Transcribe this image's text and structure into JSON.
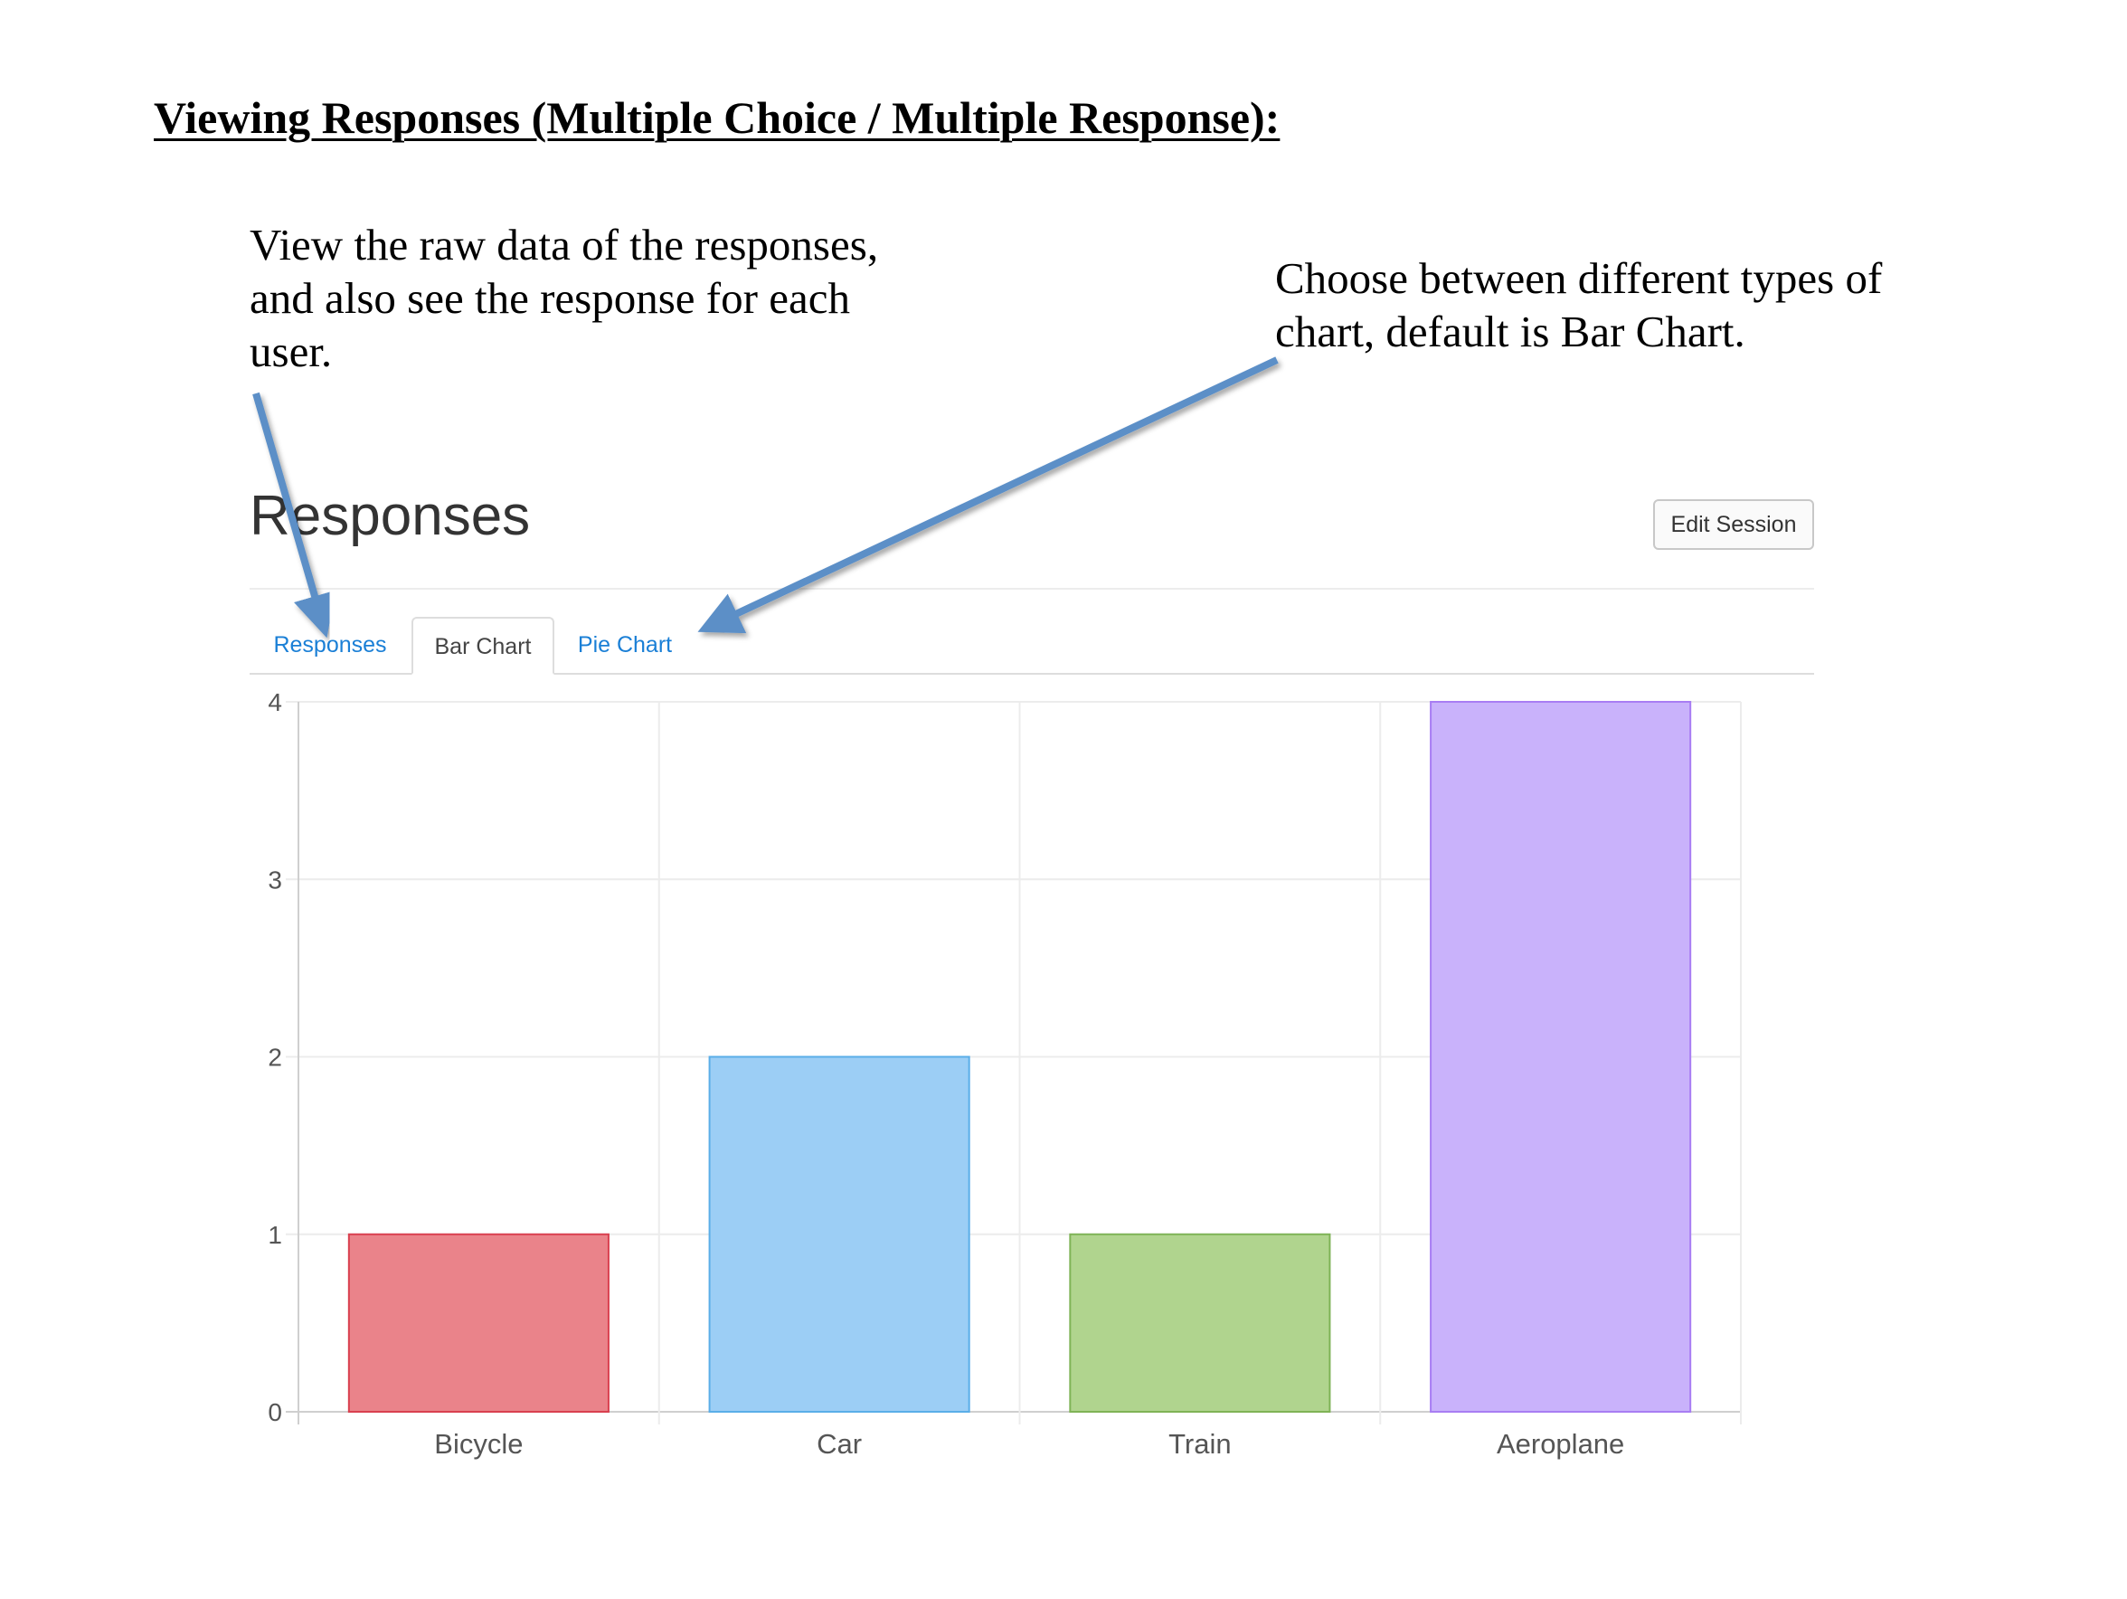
{
  "document": {
    "heading": "Viewing Responses (Multiple Choice / Multiple Response):",
    "note_left": {
      "lines": [
        "View the raw data of the responses,",
        "and also see the response for each",
        "user."
      ]
    },
    "note_right": {
      "lines": [
        "Choose between different types of",
        "chart, default is Bar Chart."
      ]
    },
    "arrow_color": "#5b8fc7"
  },
  "app": {
    "title": "Responses",
    "edit_button_label": "Edit Session",
    "tabs": [
      {
        "label": "Responses",
        "active": false
      },
      {
        "label": "Bar Chart",
        "active": true
      },
      {
        "label": "Pie Chart",
        "active": false
      }
    ]
  },
  "chart_data": {
    "type": "bar",
    "categories": [
      "Bicycle",
      "Car",
      "Train",
      "Aeroplane"
    ],
    "values": [
      1,
      2,
      1,
      4
    ],
    "ylim": [
      0,
      4
    ],
    "yticks": [
      "0",
      "1",
      "2",
      "3",
      "4"
    ],
    "grid": true,
    "colors": [
      {
        "fill": "#ea838a",
        "stroke": "#d9404f"
      },
      {
        "fill": "#9ccef5",
        "stroke": "#5aaee8"
      },
      {
        "fill": "#b0d48e",
        "stroke": "#7fb356"
      },
      {
        "fill": "#c9b2fb",
        "stroke": "#a87df3"
      }
    ]
  }
}
